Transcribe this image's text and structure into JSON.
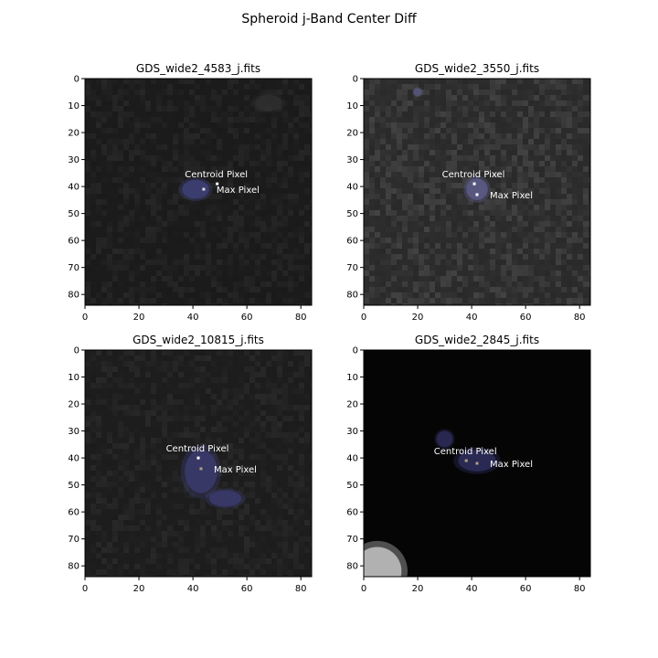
{
  "figure": {
    "title": "Spheroid j-Band Center Diff"
  },
  "chart_data": [
    {
      "type": "heatmap",
      "title": "GDS_wide2_4583_j.fits",
      "xlim": [
        0,
        84
      ],
      "ylim": [
        84,
        0
      ],
      "xticks": [
        "0",
        "20",
        "40",
        "60",
        "80"
      ],
      "yticks": [
        "0",
        "10",
        "20",
        "30",
        "40",
        "50",
        "60",
        "70",
        "80"
      ],
      "background": "#1c1c1c",
      "noise": 0.05,
      "blobs": [
        {
          "x": 41,
          "y": 41,
          "rx": 5,
          "ry": 3.5,
          "color": "#3c3f73",
          "opacity": 0.9
        },
        {
          "x": 68,
          "y": 9,
          "rx": 5,
          "ry": 3,
          "color": "#333333",
          "opacity": 0.6
        }
      ],
      "centroid_pixel": {
        "x": 49,
        "y": 39,
        "label": "Centroid Pixel",
        "color": "#ffffff"
      },
      "max_pixel": {
        "x": 44,
        "y": 41,
        "label": "Max Pixel",
        "color": "#dddddd"
      }
    },
    {
      "type": "heatmap",
      "title": "GDS_wide2_3550_j.fits",
      "xlim": [
        0,
        84
      ],
      "ylim": [
        84,
        0
      ],
      "xticks": [
        "0",
        "20",
        "40",
        "60",
        "80"
      ],
      "yticks": [
        "0",
        "10",
        "20",
        "30",
        "40",
        "50",
        "60",
        "70",
        "80"
      ],
      "background": "#2e2e2e",
      "noise": 0.1,
      "blobs": [
        {
          "x": 42,
          "y": 41,
          "rx": 4,
          "ry": 4,
          "color": "#5a5a85",
          "opacity": 0.9
        },
        {
          "x": 20,
          "y": 5,
          "rx": 1.5,
          "ry": 1.5,
          "color": "#55557a",
          "opacity": 0.9
        }
      ],
      "centroid_pixel": {
        "x": 41,
        "y": 39,
        "label": "Centroid Pixel",
        "color": "#ffffff"
      },
      "max_pixel": {
        "x": 42,
        "y": 43,
        "label": "Max Pixel",
        "color": "#ffffff"
      }
    },
    {
      "type": "heatmap",
      "title": "GDS_wide2_10815_j.fits",
      "xlim": [
        0,
        84
      ],
      "ylim": [
        84,
        0
      ],
      "xticks": [
        "0",
        "20",
        "40",
        "60",
        "80"
      ],
      "yticks": [
        "0",
        "10",
        "20",
        "30",
        "40",
        "50",
        "60",
        "70",
        "80"
      ],
      "background": "#1e1e1e",
      "noise": 0.05,
      "blobs": [
        {
          "x": 43,
          "y": 45,
          "rx": 6,
          "ry": 8,
          "color": "#3a3a6a",
          "opacity": 0.9
        },
        {
          "x": 52,
          "y": 55,
          "rx": 6,
          "ry": 3,
          "color": "#3a3a6a",
          "opacity": 0.9
        }
      ],
      "centroid_pixel": {
        "x": 42,
        "y": 40,
        "label": "Centroid Pixel",
        "color": "#ffffff"
      },
      "max_pixel": {
        "x": 43,
        "y": 44,
        "label": "Max Pixel",
        "color": "#b0a080"
      }
    },
    {
      "type": "heatmap",
      "title": "GDS_wide2_2845_j.fits",
      "xlim": [
        0,
        84
      ],
      "ylim": [
        84,
        0
      ],
      "xticks": [
        "0",
        "20",
        "40",
        "60",
        "80"
      ],
      "yticks": [
        "0",
        "10",
        "20",
        "30",
        "40",
        "50",
        "60",
        "70",
        "80"
      ],
      "background": "#050505",
      "noise": 0.0,
      "blobs": [
        {
          "x": 42,
          "y": 41,
          "rx": 7,
          "ry": 4,
          "color": "#2a2a55",
          "opacity": 0.95
        },
        {
          "x": 30,
          "y": 33,
          "rx": 3,
          "ry": 3,
          "color": "#2a2a55",
          "opacity": 0.9
        },
        {
          "x": 5,
          "y": 82,
          "rx": 9,
          "ry": 9,
          "color": "#bbbbbb",
          "opacity": 0.9
        }
      ],
      "centroid_pixel": {
        "x": 38,
        "y": 41,
        "label": "Centroid Pixel",
        "color": "#b0a080"
      },
      "max_pixel": {
        "x": 42,
        "y": 42,
        "label": "Max Pixel",
        "color": "#b0a080"
      }
    }
  ]
}
